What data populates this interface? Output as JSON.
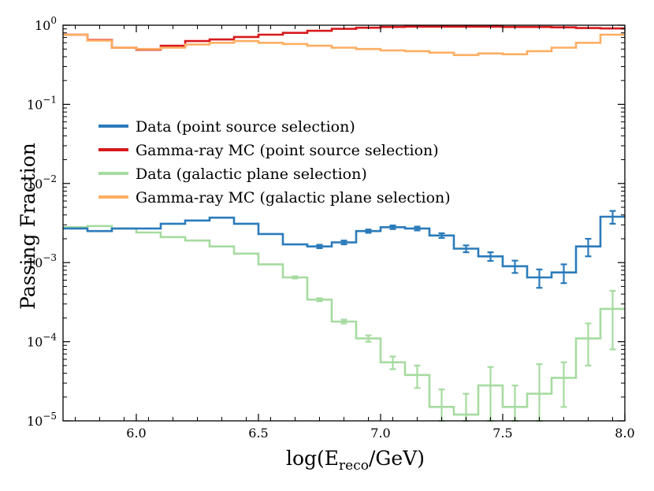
{
  "chart_data": {
    "type": "step-line",
    "title": "",
    "xlabel": "log(E_reco/GeV)",
    "xlabel_parts": {
      "prefix": "log(E",
      "sub": "reco",
      "suffix": "/GeV)"
    },
    "ylabel": "Passing Fraction",
    "xlim": [
      5.7,
      8.0
    ],
    "ylim": [
      1e-05,
      1
    ],
    "yscale": "log",
    "x_ticks": [
      "6.0",
      "6.5",
      "7.0",
      "7.5",
      "8.0"
    ],
    "y_ticks": [
      {
        "value": 1,
        "base": "10",
        "exp": "0"
      },
      {
        "value": 0.1,
        "base": "10",
        "exp": "−1"
      },
      {
        "value": 0.01,
        "base": "10",
        "exp": "−2"
      },
      {
        "value": 0.001,
        "base": "10",
        "exp": "−3"
      },
      {
        "value": 0.0001,
        "base": "10",
        "exp": "−4"
      },
      {
        "value": 1e-05,
        "base": "10",
        "exp": "−5"
      }
    ],
    "legend_position": "upper-left",
    "bin_edges": [
      5.7,
      5.8,
      5.9,
      6.0,
      6.1,
      6.2,
      6.3,
      6.4,
      6.5,
      6.6,
      6.7,
      6.8,
      6.9,
      7.0,
      7.1,
      7.2,
      7.3,
      7.4,
      7.5,
      7.6,
      7.7,
      7.8,
      7.9,
      8.0
    ],
    "series": [
      {
        "name": "Data (point source selection)",
        "color": "#2b7bba",
        "values": [
          0.0027,
          0.0025,
          0.0027,
          0.0027,
          0.0031,
          0.0034,
          0.0037,
          0.0031,
          0.0023,
          0.0017,
          0.0016,
          0.0018,
          0.0025,
          0.0028,
          0.0027,
          0.0022,
          0.0015,
          0.0012,
          0.0009,
          0.00065,
          0.00075,
          0.0016,
          0.0038
        ],
        "errors": [
          0,
          0,
          0,
          0,
          0,
          0,
          0,
          0,
          0,
          0,
          8e-05,
          0.0001,
          0.00012,
          0.00015,
          0.00015,
          0.00015,
          0.00015,
          0.00015,
          0.00016,
          0.00017,
          0.0002,
          0.0004,
          0.0007
        ]
      },
      {
        "name": "Gamma-ray MC (point source selection)",
        "color": "#d7191c",
        "values": [
          0.76,
          0.65,
          0.52,
          0.49,
          0.55,
          0.63,
          0.66,
          0.71,
          0.76,
          0.8,
          0.85,
          0.9,
          0.93,
          0.95,
          0.96,
          0.96,
          0.96,
          0.96,
          0.95,
          0.95,
          0.94,
          0.92,
          0.91
        ],
        "errors": []
      },
      {
        "name": "Data (galactic plane selection)",
        "color": "#a6dba0",
        "values": [
          0.0028,
          0.0029,
          0.0027,
          0.0024,
          0.0021,
          0.0019,
          0.0016,
          0.0013,
          0.00095,
          0.00065,
          0.00034,
          0.00018,
          0.00011,
          5.5e-05,
          3.8e-05,
          1.5e-05,
          1.2e-05,
          2.8e-05,
          1.5e-05,
          2.2e-05,
          3.5e-05,
          0.00011,
          0.00026
        ],
        "errors": [
          0,
          0,
          0,
          0,
          0,
          0,
          0,
          0,
          0,
          2e-05,
          1.5e-05,
          1e-05,
          1e-05,
          1e-05,
          1.2e-05,
          1e-05,
          1e-05,
          2e-05,
          1.3e-05,
          3e-05,
          2e-05,
          6e-05,
          0.00018
        ]
      },
      {
        "name": "Gamma-ray MC (galactic plane selection)",
        "color": "#fdae61",
        "values": [
          0.76,
          0.64,
          0.52,
          0.5,
          0.52,
          0.57,
          0.6,
          0.63,
          0.6,
          0.58,
          0.55,
          0.52,
          0.5,
          0.48,
          0.47,
          0.45,
          0.42,
          0.44,
          0.43,
          0.47,
          0.52,
          0.6,
          0.76
        ],
        "errors": []
      }
    ]
  }
}
